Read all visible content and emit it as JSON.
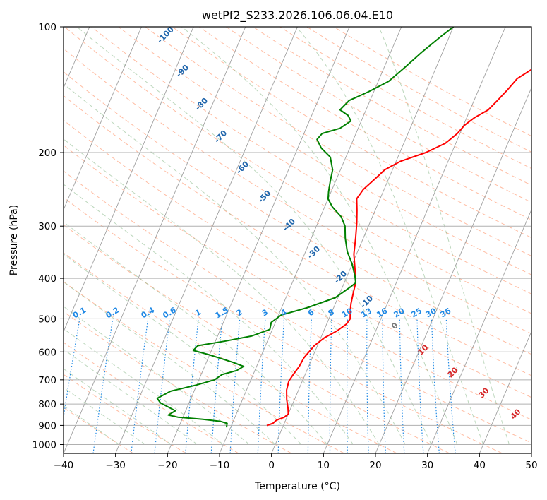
{
  "chart_data": {
    "type": "line",
    "title": "wetPf2_S233.2026.106.06.04.E10",
    "xlabel": "Temperature (°C)",
    "ylabel": "Pressure (hPa)",
    "xlim": [
      -40,
      50
    ],
    "ylim": [
      1050,
      100
    ],
    "y_scale": "log",
    "grid": true,
    "x_ticks": [
      "−40",
      "−30",
      "−20",
      "−10",
      "0",
      "10",
      "20",
      "30",
      "40",
      "50"
    ],
    "y_ticks": [
      "100",
      "200",
      "300",
      "400",
      "500",
      "600",
      "700",
      "800",
      "900",
      "1000"
    ],
    "series": [
      {
        "name": "temperature",
        "color": "#ff0000",
        "points": [
          [
            -3.2,
            900
          ],
          [
            -2.2,
            890
          ],
          [
            -1.8,
            875
          ],
          [
            -0.5,
            860
          ],
          [
            0.0,
            845
          ],
          [
            -0.5,
            820
          ],
          [
            -1.5,
            780
          ],
          [
            -2.3,
            740
          ],
          [
            -2.6,
            705
          ],
          [
            -2.3,
            680
          ],
          [
            -1.8,
            650
          ],
          [
            -1.6,
            620
          ],
          [
            -0.6,
            580
          ],
          [
            0.7,
            555
          ],
          [
            2.5,
            535
          ],
          [
            3.8,
            515
          ],
          [
            4.1,
            500
          ],
          [
            3.5,
            480
          ],
          [
            3.0,
            460
          ],
          [
            2.5,
            430
          ],
          [
            2.2,
            410
          ],
          [
            1.6,
            395
          ],
          [
            0.7,
            375
          ],
          [
            -0.5,
            350
          ],
          [
            -1.5,
            320
          ],
          [
            -2.5,
            295
          ],
          [
            -3.5,
            275
          ],
          [
            -4.5,
            258
          ],
          [
            -4.0,
            245
          ],
          [
            -2.5,
            230
          ],
          [
            -1.5,
            220
          ],
          [
            0.8,
            210
          ],
          [
            5.0,
            200
          ],
          [
            8.0,
            190
          ],
          [
            9.5,
            180
          ],
          [
            10.2,
            172
          ],
          [
            11.5,
            165
          ],
          [
            13.5,
            158
          ],
          [
            14.5,
            150
          ],
          [
            15.5,
            142
          ],
          [
            16.5,
            133
          ],
          [
            19.0,
            125
          ],
          [
            21.0,
            119
          ],
          [
            23.5,
            112
          ],
          [
            25.5,
            105
          ],
          [
            27.0,
            100
          ]
        ]
      },
      {
        "name": "dewpoint",
        "color": "#008000",
        "points": [
          [
            -10.8,
            910
          ],
          [
            -11.0,
            890
          ],
          [
            -12.5,
            880
          ],
          [
            -16.0,
            870
          ],
          [
            -21.0,
            860
          ],
          [
            -23.0,
            850
          ],
          [
            -22.0,
            830
          ],
          [
            -24.0,
            810
          ],
          [
            -25.5,
            795
          ],
          [
            -26.5,
            775
          ],
          [
            -24.5,
            745
          ],
          [
            -20.0,
            720
          ],
          [
            -17.0,
            700
          ],
          [
            -16.0,
            680
          ],
          [
            -13.5,
            665
          ],
          [
            -12.5,
            650
          ],
          [
            -15.0,
            635
          ],
          [
            -20.0,
            610
          ],
          [
            -23.5,
            595
          ],
          [
            -23.0,
            580
          ],
          [
            -18.0,
            565
          ],
          [
            -13.5,
            550
          ],
          [
            -10.5,
            530
          ],
          [
            -10.8,
            510
          ],
          [
            -9.5,
            490
          ],
          [
            -5.0,
            470
          ],
          [
            -0.5,
            445
          ],
          [
            1.5,
            420
          ],
          [
            2.2,
            410
          ],
          [
            1.5,
            395
          ],
          [
            0.0,
            370
          ],
          [
            -2.0,
            345
          ],
          [
            -3.5,
            320
          ],
          [
            -4.5,
            300
          ],
          [
            -6.0,
            285
          ],
          [
            -8.5,
            270
          ],
          [
            -10.0,
            258
          ],
          [
            -10.5,
            248
          ],
          [
            -11.0,
            235
          ],
          [
            -11.5,
            220
          ],
          [
            -13.0,
            205
          ],
          [
            -15.5,
            195
          ],
          [
            -17.0,
            186
          ],
          [
            -16.5,
            180
          ],
          [
            -13.5,
            175
          ],
          [
            -12.0,
            168
          ],
          [
            -13.0,
            163
          ],
          [
            -15.0,
            158
          ],
          [
            -14.0,
            150
          ],
          [
            -11.0,
            143
          ],
          [
            -8.0,
            135
          ],
          [
            -6.0,
            125
          ],
          [
            -4.0,
            115
          ],
          [
            -1.5,
            105
          ],
          [
            0.0,
            100
          ]
        ]
      }
    ],
    "dry_adiabat_labels": [
      "-100",
      "-90",
      "-80",
      "-70",
      "-60",
      "-50",
      "-40",
      "-30",
      "-20",
      "-10"
    ],
    "mixing_ratio_labels": [
      "0.1",
      "0.2",
      "0.4",
      "0.6",
      "1",
      "1.5",
      "2",
      "3",
      "4",
      "6",
      "8",
      "10",
      "13",
      "16",
      "20",
      "25",
      "30",
      "36"
    ],
    "moist_adiabat_labels": [
      "0",
      "10",
      "20",
      "30",
      "40"
    ],
    "colors": {
      "temperature": "#ff0000",
      "dewpoint": "#008000",
      "isotherm": "#a0a0a0",
      "dry_adiabat": "#ffa07a",
      "moist_adiabat": "#8fbc8f",
      "mixing_ratio": "#1e88e5",
      "dry_label": "#2166ac",
      "moist_label": "#d62728"
    }
  }
}
